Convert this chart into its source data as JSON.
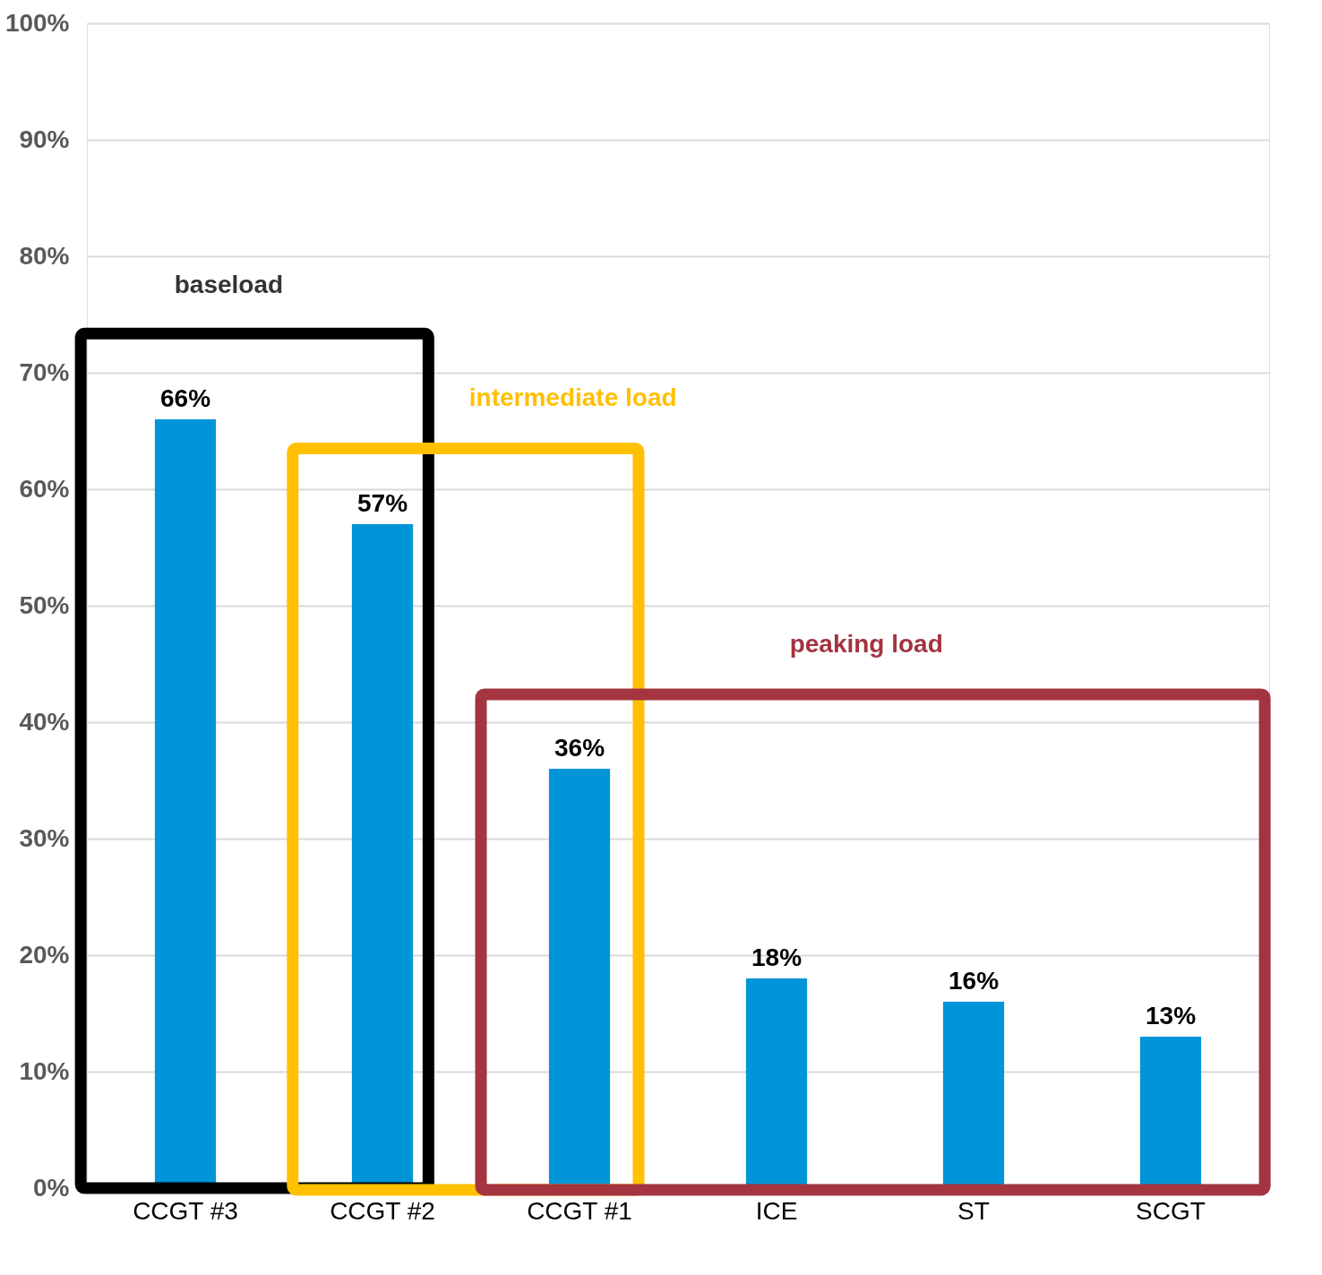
{
  "chart_data": {
    "type": "bar",
    "categories": [
      "CCGT #3",
      "CCGT #2",
      "CCGT #1",
      "ICE",
      "ST",
      "SCGT"
    ],
    "values": [
      66,
      57,
      36,
      18,
      16,
      13
    ],
    "value_labels": [
      "66%",
      "57%",
      "36%",
      "18%",
      "16%",
      "13%"
    ],
    "color": "#0095d9",
    "ylim": [
      0,
      100
    ],
    "yticks": [
      {
        "value": 0,
        "label": "0%"
      },
      {
        "value": 10,
        "label": "10%"
      },
      {
        "value": 20,
        "label": "20%"
      },
      {
        "value": 30,
        "label": "30%"
      },
      {
        "value": 40,
        "label": "40%"
      },
      {
        "value": 50,
        "label": "50%"
      },
      {
        "value": 60,
        "label": "60%"
      },
      {
        "value": 70,
        "label": "70%"
      },
      {
        "value": 80,
        "label": "80%"
      },
      {
        "value": 90,
        "label": "90%"
      },
      {
        "value": 100,
        "label": "100%"
      }
    ],
    "grid": "y",
    "annotations": [
      "baseload",
      "intermediate load",
      "peaking load"
    ]
  }
}
